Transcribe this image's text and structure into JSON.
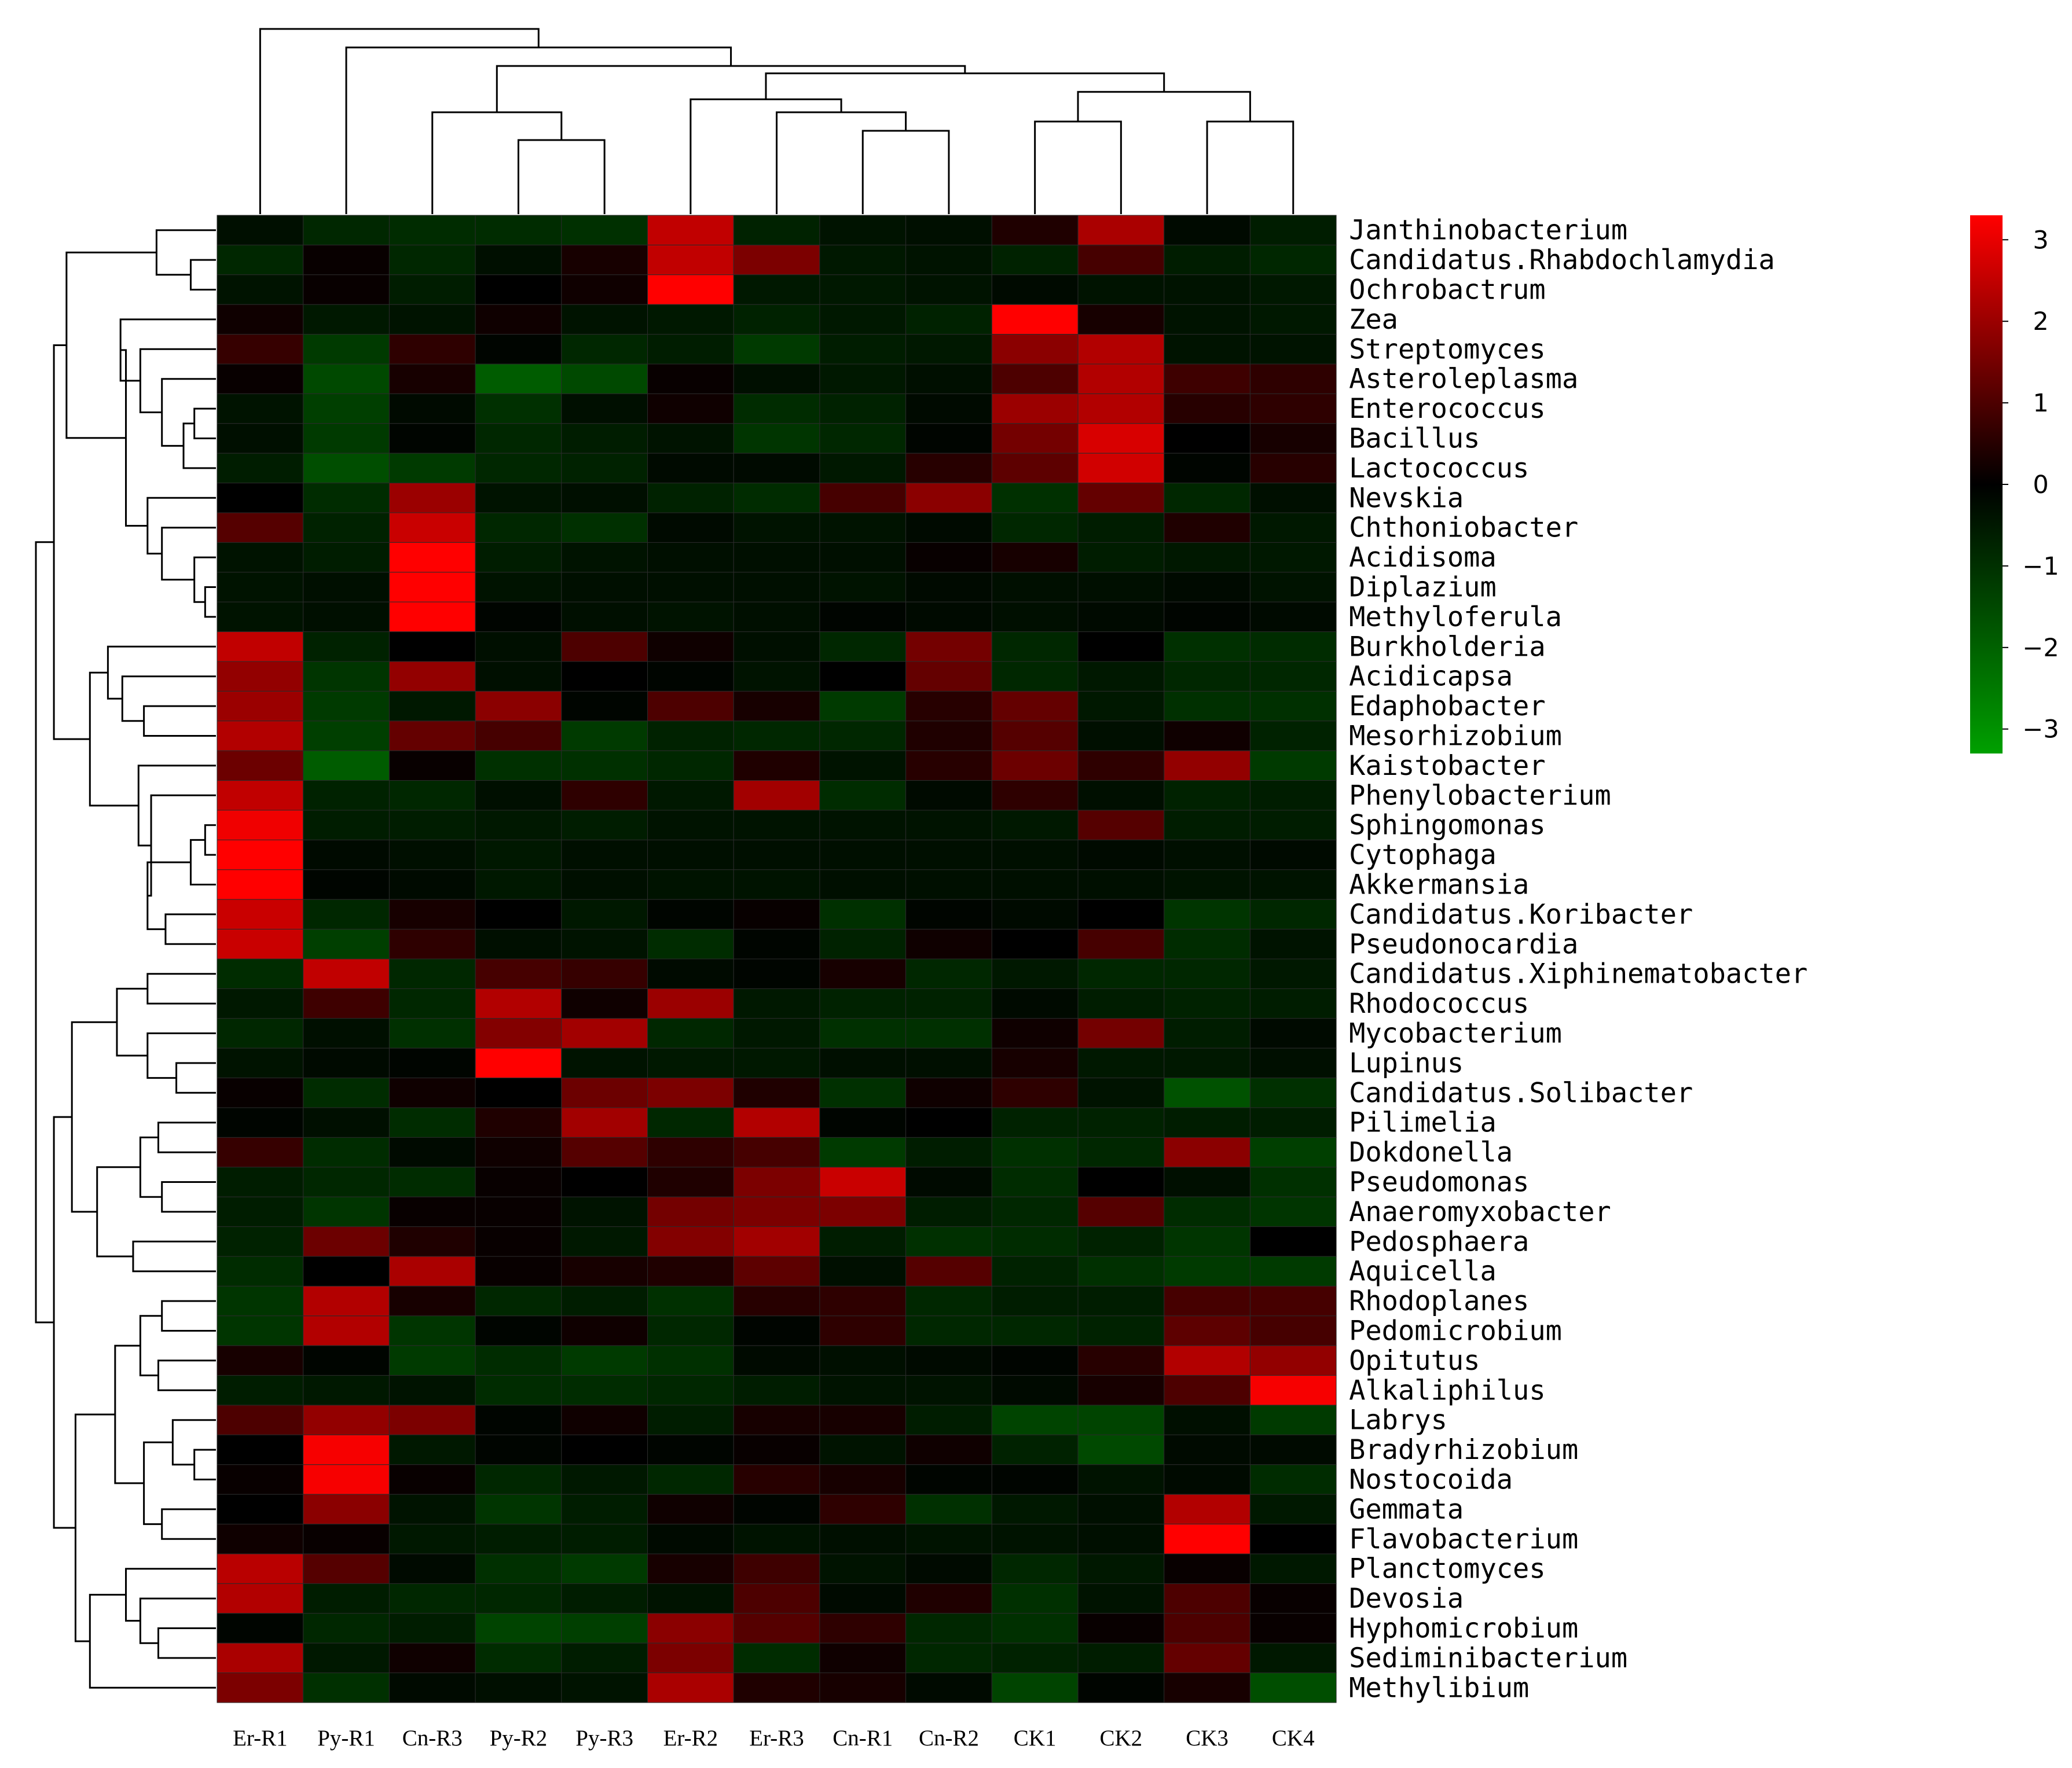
{
  "chart_data": {
    "type": "heatmap",
    "columns": [
      "Er-R1",
      "Py-R1",
      "Cn-R3",
      "Py-R2",
      "Py-R3",
      "Er-R2",
      "Er-R3",
      "Cn-R1",
      "Cn-R2",
      "CK1",
      "CK2",
      "CK3",
      "CK4"
    ],
    "rows": [
      "Janthinobacterium",
      "Candidatus.Rhabdochlamydia",
      "Ochrobactrum",
      "Zea",
      "Streptomyces",
      "Asteroleplasma",
      "Enterococcus",
      "Bacillus",
      "Lactococcus",
      "Nevskia",
      "Chthoniobacter",
      "Acidisoma",
      "Diplazium",
      "Methyloferula",
      "Burkholderia",
      "Acidicapsa",
      "Edaphobacter",
      "Mesorhizobium",
      "Kaistobacter",
      "Phenylobacterium",
      "Sphingomonas",
      "Cytophaga",
      "Akkermansia",
      "Candidatus.Koribacter",
      "Pseudonocardia",
      "Candidatus.Xiphinematobacter",
      "Rhodococcus",
      "Mycobacterium",
      "Lupinus",
      "Candidatus.Solibacter",
      "Pilimelia",
      "Dokdonella",
      "Pseudomonas",
      "Anaeromyxobacter",
      "Pedosphaera",
      "Aquicella",
      "Rhodoplanes",
      "Pedomicrobium",
      "Opitutus",
      "Alkaliphilus",
      "Labrys",
      "Bradyrhizobium",
      "Nostocoida",
      "Gemmata",
      "Flavobacterium",
      "Planctomyces",
      "Devosia",
      "Hyphomicrobium",
      "Sediminibacterium",
      "Methylibium"
    ],
    "values": [
      [
        -0.3,
        -0.8,
        -0.9,
        -0.9,
        -1.0,
        2.5,
        -0.7,
        -0.4,
        -0.3,
        0.4,
        2.2,
        -0.2,
        -0.6
      ],
      [
        -0.8,
        0.1,
        -0.8,
        -0.3,
        0.3,
        2.5,
        1.6,
        -0.5,
        -0.4,
        -0.7,
        0.9,
        -0.6,
        -0.8
      ],
      [
        -0.4,
        0.1,
        -0.6,
        0.0,
        0.2,
        3.3,
        -0.5,
        -0.5,
        -0.4,
        -0.2,
        -0.4,
        -0.4,
        -0.5
      ],
      [
        0.2,
        -0.5,
        -0.4,
        0.2,
        -0.4,
        -0.5,
        -0.7,
        -0.5,
        -0.7,
        3.3,
        0.3,
        -0.4,
        -0.5
      ],
      [
        0.7,
        -1.2,
        0.6,
        -0.1,
        -0.8,
        -0.6,
        -1.2,
        -0.6,
        -0.5,
        1.8,
        2.3,
        -0.4,
        -0.4
      ],
      [
        0.1,
        -1.5,
        0.3,
        -1.9,
        -1.5,
        0.1,
        -0.3,
        -0.5,
        -0.3,
        1.0,
        2.3,
        0.8,
        0.6
      ],
      [
        -0.4,
        -1.3,
        -0.2,
        -1.0,
        -0.3,
        0.2,
        -0.9,
        -0.7,
        -0.2,
        2.0,
        2.3,
        0.5,
        0.6
      ],
      [
        -0.3,
        -1.2,
        -0.1,
        -0.8,
        -0.6,
        -0.4,
        -1.1,
        -0.8,
        -0.1,
        1.5,
        2.8,
        0.0,
        0.3
      ],
      [
        -0.6,
        -1.6,
        -1.2,
        -0.8,
        -0.7,
        -0.2,
        -0.2,
        -0.5,
        0.5,
        1.2,
        2.7,
        -0.1,
        0.5
      ],
      [
        0.0,
        -0.9,
        2.0,
        -0.4,
        -0.3,
        -0.7,
        -0.9,
        0.9,
        1.8,
        -1.0,
        1.3,
        -0.8,
        -0.3
      ],
      [
        1.1,
        -0.7,
        2.6,
        -0.8,
        -1.0,
        -0.2,
        -0.4,
        -0.4,
        -0.2,
        -0.8,
        -0.6,
        0.4,
        -0.5
      ],
      [
        -0.4,
        -0.6,
        3.3,
        -0.6,
        -0.4,
        -0.3,
        -0.3,
        -0.3,
        0.1,
        0.3,
        -0.6,
        -0.5,
        -0.5
      ],
      [
        -0.4,
        -0.3,
        3.3,
        -0.4,
        -0.3,
        -0.3,
        -0.3,
        -0.4,
        -0.2,
        -0.3,
        -0.3,
        -0.2,
        -0.4
      ],
      [
        -0.4,
        -0.3,
        3.3,
        -0.1,
        -0.3,
        -0.4,
        -0.3,
        -0.1,
        -0.2,
        -0.3,
        -0.2,
        -0.1,
        -0.2
      ],
      [
        2.5,
        -0.7,
        0.0,
        -0.3,
        1.0,
        0.2,
        -0.3,
        -0.8,
        1.5,
        -0.8,
        0.0,
        -1.0,
        -0.9
      ],
      [
        1.9,
        -1.1,
        1.9,
        -0.3,
        0.0,
        -0.1,
        -0.4,
        0.0,
        1.3,
        -0.8,
        -0.5,
        -0.8,
        -0.8
      ],
      [
        2.0,
        -1.2,
        -0.5,
        1.8,
        -0.1,
        1.0,
        0.3,
        -1.2,
        0.5,
        1.3,
        -0.5,
        -1.0,
        -1.0
      ],
      [
        2.3,
        -1.3,
        1.3,
        0.9,
        -1.2,
        -0.7,
        -0.8,
        -0.8,
        0.4,
        1.1,
        -0.3,
        0.2,
        -0.7
      ],
      [
        1.4,
        -1.9,
        0.1,
        -1.0,
        -1.0,
        -0.8,
        0.4,
        -0.4,
        0.5,
        1.4,
        0.6,
        1.9,
        -1.2
      ],
      [
        2.5,
        -0.7,
        -0.8,
        -0.3,
        0.6,
        -0.5,
        2.1,
        -0.9,
        -0.2,
        0.6,
        -0.3,
        -0.7,
        -0.6
      ],
      [
        3.1,
        -0.6,
        -0.6,
        -0.5,
        -0.6,
        -0.4,
        -0.4,
        -0.4,
        -0.4,
        -0.5,
        1.1,
        -0.6,
        -0.6
      ],
      [
        3.3,
        -0.2,
        -0.3,
        -0.5,
        -0.3,
        -0.3,
        -0.3,
        -0.3,
        -0.3,
        -0.3,
        -0.2,
        -0.3,
        -0.2
      ],
      [
        3.3,
        -0.1,
        -0.2,
        -0.5,
        -0.3,
        -0.4,
        -0.4,
        -0.3,
        -0.3,
        -0.3,
        -0.3,
        -0.4,
        -0.4
      ],
      [
        2.6,
        -0.8,
        0.3,
        0.0,
        -0.5,
        -0.1,
        0.1,
        -1.0,
        -0.1,
        -0.2,
        0.0,
        -1.1,
        -0.8
      ],
      [
        2.6,
        -1.3,
        0.6,
        -0.3,
        -0.4,
        -0.9,
        -0.1,
        -0.7,
        0.2,
        0.0,
        0.9,
        -0.9,
        -0.4
      ],
      [
        -0.9,
        2.5,
        -0.8,
        0.9,
        0.7,
        -0.2,
        -0.1,
        0.3,
        -0.8,
        -0.5,
        -0.8,
        -0.8,
        -0.5
      ],
      [
        -0.5,
        0.8,
        -0.8,
        2.3,
        0.2,
        2.0,
        -0.5,
        -0.7,
        -0.7,
        -0.2,
        -0.6,
        -0.7,
        -0.6
      ],
      [
        -0.8,
        -0.3,
        -1.0,
        1.7,
        2.1,
        -0.8,
        -0.5,
        -1.0,
        -1.0,
        0.2,
        1.5,
        -0.6,
        -0.2
      ],
      [
        -0.4,
        -0.2,
        -0.1,
        3.3,
        -0.4,
        -0.5,
        -0.5,
        -0.3,
        -0.3,
        0.3,
        -0.5,
        -0.5,
        -0.3
      ],
      [
        0.1,
        -0.9,
        0.2,
        0.0,
        1.4,
        1.6,
        0.4,
        -1.0,
        0.2,
        0.6,
        -0.4,
        -1.7,
        -1.0
      ],
      [
        -0.1,
        -0.3,
        -0.9,
        0.4,
        2.1,
        -0.8,
        2.3,
        -0.1,
        0.0,
        -0.7,
        -0.7,
        -0.6,
        -0.6
      ],
      [
        0.7,
        -0.9,
        -0.2,
        0.2,
        1.1,
        0.6,
        0.9,
        -1.2,
        -0.6,
        -1.0,
        -0.8,
        1.8,
        -1.3
      ],
      [
        -0.6,
        -0.8,
        -0.9,
        0.1,
        0.0,
        0.4,
        1.6,
        2.6,
        -0.2,
        -0.9,
        0.0,
        -0.3,
        -1.0
      ],
      [
        -0.6,
        -1.1,
        0.1,
        0.1,
        -0.4,
        1.5,
        1.6,
        1.6,
        -0.6,
        -0.8,
        1.1,
        -0.9,
        -1.1
      ],
      [
        -0.7,
        1.4,
        0.4,
        0.1,
        -0.5,
        1.7,
        2.1,
        -0.6,
        -1.0,
        -0.9,
        -0.7,
        -1.1,
        0.0
      ],
      [
        -0.9,
        0.0,
        2.2,
        0.1,
        0.3,
        0.4,
        1.2,
        -0.3,
        1.1,
        -0.7,
        -1.0,
        -1.2,
        -1.2
      ],
      [
        -1.1,
        2.3,
        0.3,
        -0.8,
        -0.6,
        -1.0,
        0.5,
        0.6,
        -0.8,
        -0.6,
        -0.6,
        0.9,
        0.9
      ],
      [
        -1.1,
        2.3,
        -1.1,
        -0.1,
        0.2,
        -0.8,
        -0.1,
        0.6,
        -0.8,
        -0.8,
        -0.7,
        1.2,
        0.9
      ],
      [
        0.3,
        -0.1,
        -1.2,
        -0.9,
        -1.2,
        -1.0,
        -0.2,
        -0.3,
        -0.2,
        -0.1,
        0.5,
        2.3,
        1.9
      ],
      [
        -0.6,
        -0.5,
        -0.4,
        -0.9,
        -0.9,
        -0.8,
        -0.6,
        -0.4,
        -0.4,
        -0.2,
        0.3,
        1.0,
        3.2
      ],
      [
        1.0,
        1.9,
        1.6,
        -0.1,
        0.2,
        -0.6,
        0.3,
        0.3,
        -0.6,
        -1.4,
        -1.4,
        -0.3,
        -1.2
      ],
      [
        0.0,
        3.2,
        -0.5,
        -0.1,
        0.0,
        -0.1,
        0.1,
        -0.4,
        0.2,
        -0.7,
        -1.5,
        -0.2,
        -0.2
      ],
      [
        0.1,
        3.2,
        0.1,
        -0.8,
        -0.5,
        -0.8,
        0.5,
        0.3,
        -0.1,
        -0.1,
        -0.4,
        -0.2,
        -0.9
      ],
      [
        0.0,
        1.8,
        -0.4,
        -1.1,
        -0.6,
        0.2,
        -0.1,
        0.6,
        -1.0,
        -0.5,
        -0.3,
        2.3,
        -0.5
      ],
      [
        0.2,
        0.1,
        -0.5,
        -0.6,
        -0.6,
        -0.2,
        -0.4,
        -0.3,
        -0.4,
        -0.4,
        -0.3,
        3.3,
        0.0
      ],
      [
        2.4,
        1.1,
        -0.2,
        -1.0,
        -1.2,
        0.3,
        0.8,
        -0.4,
        -0.2,
        -0.8,
        -0.5,
        0.1,
        -0.5
      ],
      [
        2.3,
        -0.6,
        -0.8,
        -0.8,
        -0.6,
        -0.4,
        1.0,
        -0.2,
        0.4,
        -1.0,
        -0.4,
        1.0,
        0.1
      ],
      [
        -0.1,
        -0.8,
        -0.6,
        -1.4,
        -1.3,
        1.8,
        1.1,
        0.6,
        -0.8,
        -1.0,
        0.1,
        1.0,
        0.1
      ],
      [
        2.2,
        -0.5,
        0.2,
        -0.9,
        -0.6,
        1.6,
        -0.9,
        0.2,
        -0.8,
        -0.7,
        -0.6,
        1.3,
        -0.5
      ],
      [
        1.6,
        -1.0,
        -0.2,
        -0.3,
        -0.4,
        2.2,
        0.4,
        0.3,
        -0.2,
        -1.4,
        -0.1,
        0.3,
        -1.6
      ]
    ],
    "colorbar": {
      "min": -3.3,
      "max": 3.3,
      "ticks": [
        3,
        2,
        1,
        0,
        -1,
        -2,
        -3
      ],
      "tick_labels": [
        "3",
        "2",
        "1",
        "0",
        "−1",
        "−2",
        "−3"
      ],
      "low_color": "#00a000",
      "mid_color": "#000000",
      "high_color": "#ff0000",
      "placement": "right"
    },
    "row_dendrogram": {
      "merges": [
        [
          1,
          2
        ],
        [
          0,
          -1
        ],
        [
          6,
          7
        ],
        [
          8,
          -3
        ],
        [
          5,
          -4
        ],
        [
          4,
          -5
        ],
        [
          3,
          -6
        ],
        [
          12,
          13
        ],
        [
          11,
          -8
        ],
        [
          10,
          -9
        ],
        [
          9,
          -10
        ],
        [
          -7,
          -11
        ],
        [
          -2,
          -12
        ],
        [
          20,
          21
        ],
        [
          22,
          -14
        ],
        [
          23,
          24
        ],
        [
          -15,
          -16
        ],
        [
          19,
          -17
        ],
        [
          18,
          -18
        ],
        [
          16,
          17
        ],
        [
          15,
          -20
        ],
        [
          14,
          -21
        ],
        [
          -19,
          -22
        ],
        [
          -13,
          -23
        ],
        [
          25,
          26
        ],
        [
          28,
          29
        ],
        [
          27,
          -26
        ],
        [
          -25,
          -27
        ],
        [
          30,
          31
        ],
        [
          32,
          33
        ],
        [
          -29,
          -30
        ],
        [
          34,
          35
        ],
        [
          -31,
          -32
        ],
        [
          -28,
          -33
        ],
        [
          36,
          37
        ],
        [
          38,
          39
        ],
        [
          -35,
          -36
        ],
        [
          41,
          42
        ],
        [
          40,
          -38
        ],
        [
          43,
          44
        ],
        [
          -39,
          -40
        ],
        [
          -37,
          -41
        ],
        [
          47,
          48
        ],
        [
          46,
          -43
        ],
        [
          45,
          -44
        ],
        [
          49,
          -45
        ],
        [
          -42,
          -46
        ],
        [
          -34,
          -47
        ],
        [
          -24,
          -48
        ]
      ],
      "heights": [
        0.14,
        0.33,
        0.12,
        0.18,
        0.3,
        0.42,
        0.53,
        0.06,
        0.12,
        0.3,
        0.38,
        0.5,
        0.83,
        0.06,
        0.14,
        0.28,
        0.38,
        0.36,
        0.43,
        0.4,
        0.52,
        0.6,
        0.7,
        0.9,
        0.38,
        0.22,
        0.38,
        0.55,
        0.32,
        0.3,
        0.42,
        0.46,
        0.66,
        0.8,
        0.3,
        0.32,
        0.42,
        0.12,
        0.24,
        0.3,
        0.4,
        0.56,
        0.32,
        0.42,
        0.5,
        0.7,
        0.78,
        0.9,
        1.0
      ]
    },
    "column_dendrogram": {
      "merges": [
        [
          3,
          4
        ],
        [
          2,
          -1
        ],
        [
          7,
          8
        ],
        [
          6,
          -3
        ],
        [
          5,
          -4
        ],
        [
          9,
          10
        ],
        [
          11,
          12
        ],
        [
          -6,
          -7
        ],
        [
          -5,
          -8
        ],
        [
          -2,
          -9
        ],
        [
          1,
          -10
        ],
        [
          0,
          -11
        ]
      ],
      "heights": [
        0.4,
        0.55,
        0.45,
        0.55,
        0.62,
        0.5,
        0.5,
        0.66,
        0.76,
        0.8,
        0.9,
        1.0
      ]
    }
  }
}
